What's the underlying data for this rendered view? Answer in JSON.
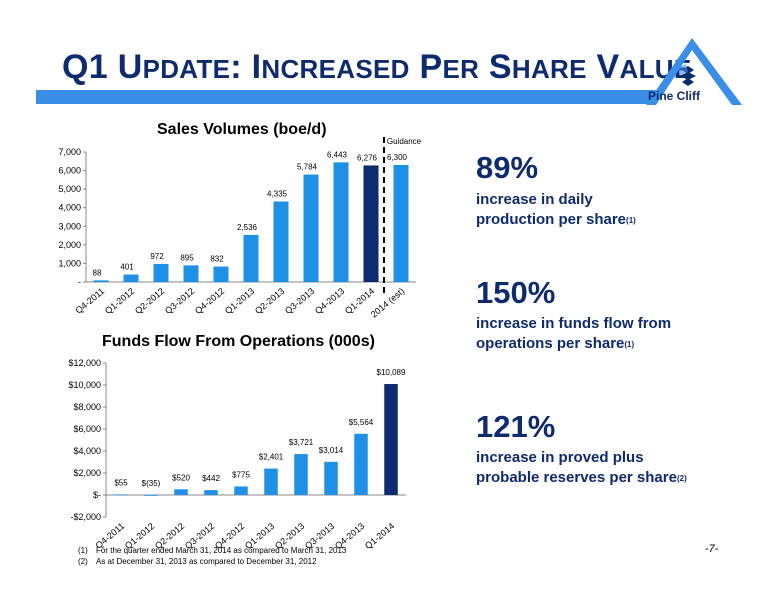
{
  "header": {
    "title_q1": "Q1",
    "title_rest_parts": [
      {
        "cap": "U",
        "sc": "PDATE"
      },
      {
        "cap": ": I",
        "sc": "NCREASED"
      },
      {
        "cap": " P",
        "sc": "ER"
      },
      {
        "cap": " S",
        "sc": "HARE"
      },
      {
        "cap": " V",
        "sc": "ALUE"
      }
    ],
    "logo_text": "Pine Cliff",
    "accent_color": "#3a8ee6",
    "title_color": "#0d2b6e"
  },
  "chart_data": [
    {
      "type": "bar",
      "title": "Sales Volumes (boe/d)",
      "categories": [
        "Q4-2011",
        "Q1-2012",
        "Q2-2012",
        "Q3-2012",
        "Q4-2012",
        "Q1-2013",
        "Q2-2013",
        "Q3-2013",
        "Q4-2013",
        "Q1-2014",
        "2014 (est)"
      ],
      "values": [
        88,
        401,
        972,
        895,
        832,
        2536,
        4335,
        5784,
        6443,
        6276,
        6300
      ],
      "data_labels": [
        "88",
        "401",
        "972",
        "895",
        "832",
        "2,536",
        "4,335",
        "5,784",
        "6,443",
        "6,276",
        "6,300"
      ],
      "ylim": [
        0,
        7000
      ],
      "yticks": [
        "-",
        "1,000",
        "2,000",
        "3,000",
        "4,000",
        "5,000",
        "6,000",
        "7,000"
      ],
      "annotation": [
        "2014",
        "Guidance"
      ],
      "bar_color": "#1e90e6",
      "highlight_color": "#0d2b6e",
      "highlight_index": 9
    },
    {
      "type": "bar",
      "title": "Funds Flow From Operations (000s)",
      "categories": [
        "Q4-2011",
        "Q1-2012",
        "Q2-2012",
        "Q3-2012",
        "Q4-2012",
        "Q1-2013",
        "Q2-2013",
        "Q3-2013",
        "Q4-2013",
        "Q1-2014"
      ],
      "values": [
        55,
        -35,
        520,
        442,
        775,
        2401,
        3721,
        3014,
        5564,
        10089
      ],
      "data_labels": [
        "$55",
        "$(35)",
        "$520",
        "$442",
        "$775",
        "$2,401",
        "$3,721",
        "$3,014",
        "$5,564",
        "$10,089"
      ],
      "ylim": [
        -2000,
        12000
      ],
      "yticks": [
        "-$2,000",
        "$-",
        "$2,000",
        "$4,000",
        "$6,000",
        "$8,000",
        "$10,000",
        "$12,000"
      ],
      "bar_color": "#1e90e6",
      "highlight_color": "#0d2b6e",
      "highlight_index": 9
    }
  ],
  "stats": [
    {
      "big": "89%",
      "line1": "increase in daily",
      "line2": "production per share",
      "note": "(1)"
    },
    {
      "big": "150%",
      "line1": "increase in funds flow from",
      "line2": "operations per share",
      "note": "(1)"
    },
    {
      "big": "121%",
      "line1": "increase in proved plus",
      "line2": "probable reserves per share",
      "note": "(2)"
    }
  ],
  "footnotes": [
    {
      "num": "(1)",
      "text": "For the quarter ended March 31, 2014 as compared to March 31, 2013"
    },
    {
      "num": "(2)",
      "text": "As at December 31, 2013 as compared to December 31, 2012"
    }
  ],
  "page_number": "-7-"
}
